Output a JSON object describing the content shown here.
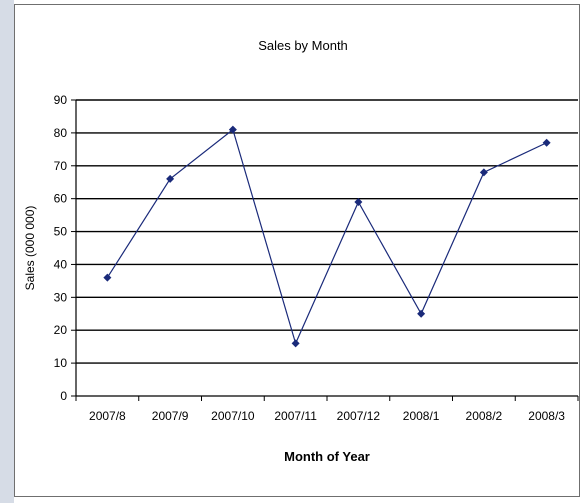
{
  "chart_data": {
    "type": "line",
    "title": "Sales by Month",
    "xlabel": "Month of Year",
    "ylabel": "Sales (000 000)",
    "categories": [
      "2007/8",
      "2007/9",
      "2007/10",
      "2007/11",
      "2007/12",
      "2008/1",
      "2008/2",
      "2008/3"
    ],
    "series": [
      {
        "values": [
          36,
          66,
          81,
          16,
          59,
          25,
          68,
          77
        ],
        "color": "#1a2a7a"
      }
    ],
    "ylim": [
      0,
      90
    ],
    "yticks": [
      0,
      10,
      20,
      30,
      40,
      50,
      60,
      70,
      80,
      90
    ],
    "grid": true,
    "legend": "none"
  }
}
